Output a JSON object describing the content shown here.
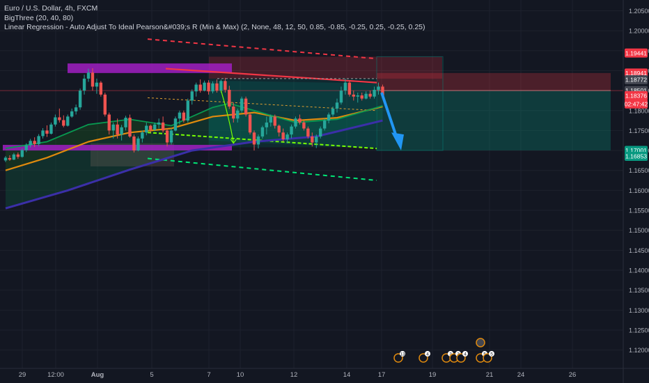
{
  "chart_data": {
    "type": "candlestick",
    "symbol_line": "Euro / U.S. Dollar, 4h, FXCM",
    "indicators": [
      "BigThree (20, 40, 80)",
      "Linear Regression - Auto Adjust To Ideal Pearson&#039;s R (Min & Max) (2, None, 48, 12, 50, 0.85, -0.85, -0.25, 0.25, -0.25, 0.25)"
    ],
    "price_axis": {
      "ticks": [
        1.205,
        1.2,
        1.195,
        1.19,
        1.185,
        1.18,
        1.175,
        1.17,
        1.165,
        1.16,
        1.155,
        1.15,
        1.145,
        1.14,
        1.135,
        1.13,
        1.125,
        1.12
      ],
      "tick_labels": [
        "1.20500",
        "1.20000",
        "1.19500",
        "1.19000",
        "1.18500",
        "1.18000",
        "1.17500",
        "1.17000",
        "1.16500",
        "1.16000",
        "1.15500",
        "1.15000",
        "1.14500",
        "1.14000",
        "1.13500",
        "1.13000",
        "1.12500",
        "1.12000"
      ],
      "range": [
        1.1154,
        1.2077
      ]
    },
    "price_tags": [
      {
        "label": "1.19441",
        "value": 1.19441,
        "color": "#f23645"
      },
      {
        "label": "1.18941",
        "value": 1.18941,
        "color": "#f23645"
      },
      {
        "label": "1.18772",
        "value": 1.18772,
        "color": "#434651"
      },
      {
        "label": "1.18501",
        "value": 1.18501,
        "color": "#434651"
      },
      {
        "label": "1.18376",
        "value": 1.18376,
        "color": "#f23645"
      },
      {
        "label": "02:47:42",
        "value": 1.18166,
        "color": "#f23645"
      },
      {
        "label": "1.17001",
        "value": 1.17001,
        "color": "#089981"
      },
      {
        "label": "1.16853",
        "value": 1.16853,
        "color": "#089981"
      }
    ],
    "time_axis": {
      "labels": [
        "29",
        "12:00",
        "Aug",
        "5",
        "7",
        "10",
        "12",
        "14",
        "17",
        "19",
        "21",
        "24",
        "26"
      ],
      "bold_labels": [
        "Aug"
      ]
    },
    "candles": [
      {
        "o": 1.1675,
        "h": 1.1686,
        "l": 1.1671,
        "c": 1.1682
      },
      {
        "o": 1.1681,
        "h": 1.1688,
        "l": 1.1674,
        "c": 1.1677
      },
      {
        "o": 1.1677,
        "h": 1.1694,
        "l": 1.1676,
        "c": 1.169
      },
      {
        "o": 1.169,
        "h": 1.1695,
        "l": 1.1679,
        "c": 1.1684
      },
      {
        "o": 1.1684,
        "h": 1.1705,
        "l": 1.1682,
        "c": 1.1701
      },
      {
        "o": 1.1701,
        "h": 1.1718,
        "l": 1.1696,
        "c": 1.1713
      },
      {
        "o": 1.1713,
        "h": 1.1729,
        "l": 1.1707,
        "c": 1.1724
      },
      {
        "o": 1.1724,
        "h": 1.1733,
        "l": 1.1709,
        "c": 1.1716
      },
      {
        "o": 1.1716,
        "h": 1.1741,
        "l": 1.1711,
        "c": 1.1736
      },
      {
        "o": 1.1736,
        "h": 1.1756,
        "l": 1.173,
        "c": 1.175
      },
      {
        "o": 1.175,
        "h": 1.1763,
        "l": 1.1734,
        "c": 1.1742
      },
      {
        "o": 1.1742,
        "h": 1.177,
        "l": 1.174,
        "c": 1.1765
      },
      {
        "o": 1.1765,
        "h": 1.179,
        "l": 1.176,
        "c": 1.1783
      },
      {
        "o": 1.1783,
        "h": 1.1805,
        "l": 1.177,
        "c": 1.1776
      },
      {
        "o": 1.1776,
        "h": 1.1788,
        "l": 1.1758,
        "c": 1.1762
      },
      {
        "o": 1.1762,
        "h": 1.179,
        "l": 1.176,
        "c": 1.1785
      },
      {
        "o": 1.1785,
        "h": 1.1805,
        "l": 1.1782,
        "c": 1.1798
      },
      {
        "o": 1.1798,
        "h": 1.1815,
        "l": 1.179,
        "c": 1.1808
      },
      {
        "o": 1.1808,
        "h": 1.1855,
        "l": 1.1802,
        "c": 1.185
      },
      {
        "o": 1.185,
        "h": 1.189,
        "l": 1.184,
        "c": 1.188
      },
      {
        "o": 1.188,
        "h": 1.1905,
        "l": 1.1872,
        "c": 1.1895
      },
      {
        "o": 1.1895,
        "h": 1.1906,
        "l": 1.185,
        "c": 1.186
      },
      {
        "o": 1.186,
        "h": 1.188,
        "l": 1.1842,
        "c": 1.187
      },
      {
        "o": 1.187,
        "h": 1.1874,
        "l": 1.1835,
        "c": 1.184
      },
      {
        "o": 1.184,
        "h": 1.1845,
        "l": 1.1785,
        "c": 1.179
      },
      {
        "o": 1.179,
        "h": 1.1795,
        "l": 1.174,
        "c": 1.175
      },
      {
        "o": 1.175,
        "h": 1.177,
        "l": 1.173,
        "c": 1.1765
      },
      {
        "o": 1.1765,
        "h": 1.178,
        "l": 1.173,
        "c": 1.174
      },
      {
        "o": 1.174,
        "h": 1.1764,
        "l": 1.1725,
        "c": 1.1758
      },
      {
        "o": 1.1758,
        "h": 1.1787,
        "l": 1.175,
        "c": 1.1782
      },
      {
        "o": 1.1782,
        "h": 1.179,
        "l": 1.1732,
        "c": 1.1735
      },
      {
        "o": 1.1735,
        "h": 1.174,
        "l": 1.1695,
        "c": 1.17
      },
      {
        "o": 1.17,
        "h": 1.1735,
        "l": 1.1698,
        "c": 1.173
      },
      {
        "o": 1.173,
        "h": 1.175,
        "l": 1.172,
        "c": 1.1745
      },
      {
        "o": 1.1745,
        "h": 1.177,
        "l": 1.1738,
        "c": 1.1762
      },
      {
        "o": 1.1762,
        "h": 1.1765,
        "l": 1.1745,
        "c": 1.1752
      },
      {
        "o": 1.1752,
        "h": 1.177,
        "l": 1.1748,
        "c": 1.1765
      },
      {
        "o": 1.1765,
        "h": 1.178,
        "l": 1.1755,
        "c": 1.177
      },
      {
        "o": 1.177,
        "h": 1.1785,
        "l": 1.1745,
        "c": 1.175
      },
      {
        "o": 1.175,
        "h": 1.1756,
        "l": 1.171,
        "c": 1.172
      },
      {
        "o": 1.172,
        "h": 1.1755,
        "l": 1.1715,
        "c": 1.175
      },
      {
        "o": 1.175,
        "h": 1.1785,
        "l": 1.1748,
        "c": 1.178
      },
      {
        "o": 1.178,
        "h": 1.18,
        "l": 1.1765,
        "c": 1.1795
      },
      {
        "o": 1.1795,
        "h": 1.18,
        "l": 1.177,
        "c": 1.1775
      },
      {
        "o": 1.1775,
        "h": 1.183,
        "l": 1.177,
        "c": 1.1825
      },
      {
        "o": 1.1825,
        "h": 1.1853,
        "l": 1.1815,
        "c": 1.1848
      },
      {
        "o": 1.1848,
        "h": 1.187,
        "l": 1.1835,
        "c": 1.1865
      },
      {
        "o": 1.1865,
        "h": 1.1878,
        "l": 1.1845,
        "c": 1.185
      },
      {
        "o": 1.185,
        "h": 1.1875,
        "l": 1.1848,
        "c": 1.187
      },
      {
        "o": 1.187,
        "h": 1.1876,
        "l": 1.184,
        "c": 1.1848
      },
      {
        "o": 1.1848,
        "h": 1.1873,
        "l": 1.1843,
        "c": 1.1868
      },
      {
        "o": 1.1868,
        "h": 1.1878,
        "l": 1.1845,
        "c": 1.185
      },
      {
        "o": 1.185,
        "h": 1.1878,
        "l": 1.1845,
        "c": 1.1874
      },
      {
        "o": 1.1874,
        "h": 1.1882,
        "l": 1.1845,
        "c": 1.1852
      },
      {
        "o": 1.1852,
        "h": 1.1862,
        "l": 1.1804,
        "c": 1.181
      },
      {
        "o": 1.181,
        "h": 1.182,
        "l": 1.177,
        "c": 1.178
      },
      {
        "o": 1.178,
        "h": 1.1805,
        "l": 1.177,
        "c": 1.18
      },
      {
        "o": 1.18,
        "h": 1.1835,
        "l": 1.1795,
        "c": 1.183
      },
      {
        "o": 1.183,
        "h": 1.1835,
        "l": 1.1785,
        "c": 1.179
      },
      {
        "o": 1.179,
        "h": 1.1795,
        "l": 1.174,
        "c": 1.1745
      },
      {
        "o": 1.1745,
        "h": 1.175,
        "l": 1.17,
        "c": 1.1715
      },
      {
        "o": 1.1715,
        "h": 1.174,
        "l": 1.1705,
        "c": 1.1735
      },
      {
        "o": 1.1735,
        "h": 1.1762,
        "l": 1.173,
        "c": 1.1758
      },
      {
        "o": 1.1758,
        "h": 1.1785,
        "l": 1.174,
        "c": 1.177
      },
      {
        "o": 1.177,
        "h": 1.179,
        "l": 1.176,
        "c": 1.1785
      },
      {
        "o": 1.1785,
        "h": 1.179,
        "l": 1.1755,
        "c": 1.1762
      },
      {
        "o": 1.1762,
        "h": 1.1765,
        "l": 1.1735,
        "c": 1.1745
      },
      {
        "o": 1.1745,
        "h": 1.1755,
        "l": 1.1722,
        "c": 1.1728
      },
      {
        "o": 1.1728,
        "h": 1.1745,
        "l": 1.1718,
        "c": 1.174
      },
      {
        "o": 1.174,
        "h": 1.1765,
        "l": 1.173,
        "c": 1.176
      },
      {
        "o": 1.176,
        "h": 1.1785,
        "l": 1.1755,
        "c": 1.178
      },
      {
        "o": 1.178,
        "h": 1.179,
        "l": 1.1765,
        "c": 1.177
      },
      {
        "o": 1.177,
        "h": 1.1775,
        "l": 1.175,
        "c": 1.1755
      },
      {
        "o": 1.1755,
        "h": 1.176,
        "l": 1.173,
        "c": 1.1735
      },
      {
        "o": 1.1735,
        "h": 1.1745,
        "l": 1.171,
        "c": 1.172
      },
      {
        "o": 1.172,
        "h": 1.174,
        "l": 1.1706,
        "c": 1.1735
      },
      {
        "o": 1.1735,
        "h": 1.176,
        "l": 1.173,
        "c": 1.1755
      },
      {
        "o": 1.1755,
        "h": 1.178,
        "l": 1.175,
        "c": 1.1775
      },
      {
        "o": 1.1775,
        "h": 1.1795,
        "l": 1.1768,
        "c": 1.179
      },
      {
        "o": 1.179,
        "h": 1.181,
        "l": 1.1785,
        "c": 1.1805
      },
      {
        "o": 1.1805,
        "h": 1.183,
        "l": 1.1795,
        "c": 1.182
      },
      {
        "o": 1.182,
        "h": 1.186,
        "l": 1.1815,
        "c": 1.185
      },
      {
        "o": 1.185,
        "h": 1.188,
        "l": 1.184,
        "c": 1.187
      },
      {
        "o": 1.187,
        "h": 1.1875,
        "l": 1.1835,
        "c": 1.184
      },
      {
        "o": 1.184,
        "h": 1.185,
        "l": 1.1825,
        "c": 1.1835
      },
      {
        "o": 1.1835,
        "h": 1.1845,
        "l": 1.182,
        "c": 1.1838
      },
      {
        "o": 1.1838,
        "h": 1.1845,
        "l": 1.1825,
        "c": 1.183
      },
      {
        "o": 1.183,
        "h": 1.1848,
        "l": 1.1828,
        "c": 1.1842
      },
      {
        "o": 1.1842,
        "h": 1.185,
        "l": 1.183,
        "c": 1.1835
      },
      {
        "o": 1.1835,
        "h": 1.186,
        "l": 1.183,
        "c": 1.1852
      },
      {
        "o": 1.1852,
        "h": 1.187,
        "l": 1.184,
        "c": 1.186
      },
      {
        "o": 1.186,
        "h": 1.1865,
        "l": 1.1835,
        "c": 1.18376
      }
    ],
    "moving_averages": [
      {
        "label": "20",
        "color": "#089950",
        "points": [
          [
            0,
            1.1705
          ],
          [
            10,
            1.1722
          ],
          [
            20,
            1.1765
          ],
          [
            30,
            1.1778
          ],
          [
            40,
            1.1762
          ],
          [
            50,
            1.1808
          ],
          [
            54,
            1.1818
          ],
          [
            60,
            1.18
          ],
          [
            70,
            1.177
          ],
          [
            80,
            1.1778
          ],
          [
            91,
            1.1812
          ]
        ]
      },
      {
        "label": "40",
        "color": "#e08a0e",
        "points": [
          [
            0,
            1.165
          ],
          [
            10,
            1.1682
          ],
          [
            20,
            1.1722
          ],
          [
            30,
            1.1745
          ],
          [
            40,
            1.1755
          ],
          [
            50,
            1.1785
          ],
          [
            60,
            1.1795
          ],
          [
            70,
            1.1775
          ],
          [
            80,
            1.1782
          ],
          [
            91,
            1.181
          ]
        ]
      },
      {
        "label": "80",
        "color": "#3b2fa8",
        "points": [
          [
            0,
            1.1555
          ],
          [
            15,
            1.16
          ],
          [
            30,
            1.1652
          ],
          [
            45,
            1.17
          ],
          [
            60,
            1.1722
          ],
          [
            75,
            1.1735
          ],
          [
            91,
            1.1775
          ]
        ]
      }
    ],
    "regression_channel": {
      "upper_dash": [
        [
          1.1979,
          1.193
        ]
      ],
      "upper_solid": [
        [
          1.1905,
          1.187
        ]
      ],
      "mid_dotted": [
        [
          1.1832,
          1.18
        ]
      ],
      "lower_solid": [
        [
          1.1745,
          1.1705
        ]
      ],
      "lower_dash": [
        [
          1.168,
          1.1625
        ]
      ]
    },
    "zones": [
      {
        "label": "supply",
        "color": "#9c27b0",
        "top": 1.1918,
        "bottom": 1.1894
      },
      {
        "label": "demand",
        "color": "#9c27b0",
        "top": 1.1714,
        "bottom": 1.17
      }
    ],
    "position": {
      "type": "short",
      "entry": 1.18501,
      "target": 1.17001,
      "stop": 1.18941,
      "color_stop": "#f23645",
      "color_target": "#089981"
    },
    "events": [
      {
        "symbol": "13",
        "date": "17"
      },
      {
        "symbol": "4",
        "date": "18"
      },
      {
        "symbol": "3",
        "date": "19"
      },
      {
        "symbol": "3",
        "date": "19"
      },
      {
        "symbol": "4",
        "date": "19"
      },
      {
        "symbol": "5",
        "date": "20"
      },
      {
        "symbol": "5",
        "date": "20"
      }
    ]
  }
}
